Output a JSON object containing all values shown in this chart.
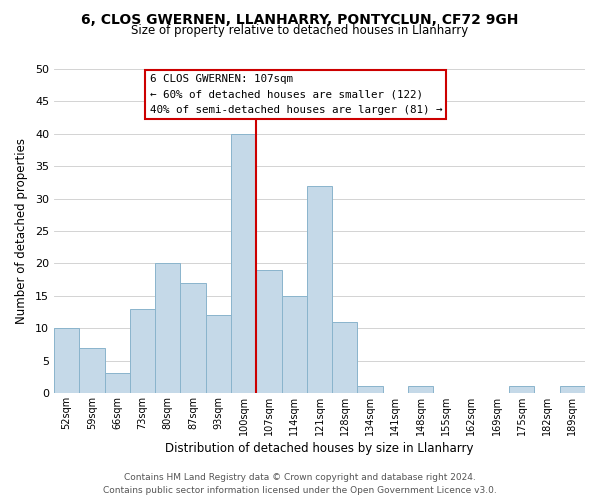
{
  "title_line1": "6, CLOS GWERNEN, LLANHARRY, PONTYCLUN, CF72 9GH",
  "title_line2": "Size of property relative to detached houses in Llanharry",
  "xlabel": "Distribution of detached houses by size in Llanharry",
  "ylabel": "Number of detached properties",
  "categories": [
    "52sqm",
    "59sqm",
    "66sqm",
    "73sqm",
    "80sqm",
    "87sqm",
    "93sqm",
    "100sqm",
    "107sqm",
    "114sqm",
    "121sqm",
    "128sqm",
    "134sqm",
    "141sqm",
    "148sqm",
    "155sqm",
    "162sqm",
    "169sqm",
    "175sqm",
    "182sqm",
    "189sqm"
  ],
  "values": [
    10,
    7,
    3,
    13,
    20,
    17,
    12,
    40,
    19,
    15,
    32,
    11,
    1,
    0,
    1,
    0,
    0,
    0,
    1,
    0,
    1
  ],
  "highlight_index": 7,
  "bar_color": "#c5d9e8",
  "bar_edge_color": "#8ab4cc",
  "highlight_line_color": "#cc0000",
  "ylim": [
    0,
    50
  ],
  "yticks": [
    0,
    5,
    10,
    15,
    20,
    25,
    30,
    35,
    40,
    45,
    50
  ],
  "annotation_title": "6 CLOS GWERNEN: 107sqm",
  "annotation_line1": "← 60% of detached houses are smaller (122)",
  "annotation_line2": "40% of semi-detached houses are larger (81) →",
  "footer_line1": "Contains HM Land Registry data © Crown copyright and database right 2024.",
  "footer_line2": "Contains public sector information licensed under the Open Government Licence v3.0.",
  "bg_color": "#ffffff",
  "grid_color": "#cccccc"
}
